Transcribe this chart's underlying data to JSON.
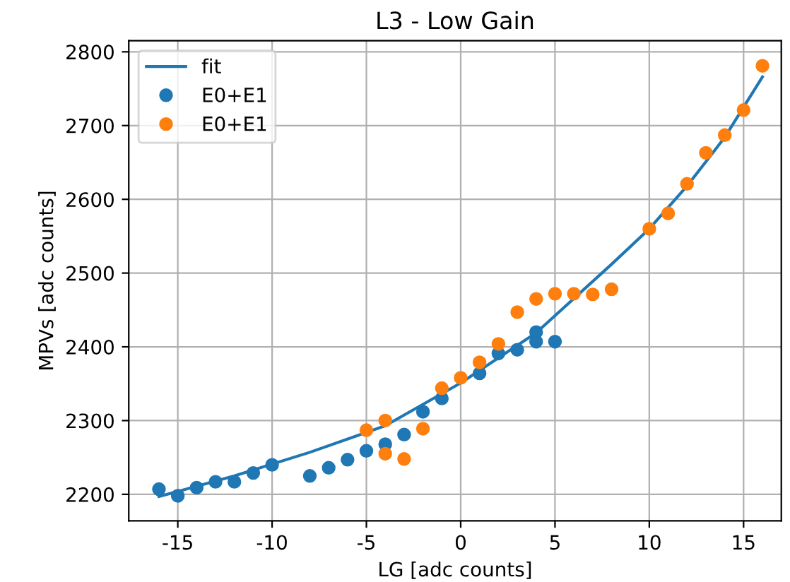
{
  "chart_data": {
    "type": "line",
    "title": "L3 - Low Gain",
    "xlabel": "LG [adc counts]",
    "ylabel": "MPVs [adc counts]",
    "xlim": [
      -17.6,
      17.0
    ],
    "ylim": [
      2164,
      2815
    ],
    "xticks": [
      -15,
      -10,
      -5,
      0,
      5,
      10,
      15
    ],
    "yticks": [
      2200,
      2300,
      2400,
      2500,
      2600,
      2700,
      2800
    ],
    "grid": true,
    "legend": "top left",
    "marker": "circle",
    "series": [
      {
        "name": "fit",
        "marker": "none",
        "color": "#1f77b4",
        "x": [
          -16,
          -12,
          -8,
          -4,
          0,
          4,
          8,
          10,
          12,
          14,
          16
        ],
        "values": [
          2197,
          2225,
          2257,
          2293,
          2351,
          2419,
          2512,
          2560,
          2618,
          2684,
          2766
        ]
      },
      {
        "name": "E0+E1",
        "type": "scatter",
        "color": "#1f77b4",
        "x": [
          -16,
          -15,
          -14,
          -13,
          -12,
          -11,
          -10,
          -8,
          -7,
          -6,
          -5,
          -4,
          -3,
          -2,
          -1,
          1,
          2,
          3,
          4,
          4,
          5
        ],
        "values": [
          2207,
          2198,
          2209,
          2217,
          2217,
          2229,
          2240,
          2225,
          2236,
          2247,
          2259,
          2268,
          2281,
          2312,
          2330,
          2364,
          2391,
          2396,
          2407,
          2420,
          2407
        ]
      },
      {
        "name": "E0+E1",
        "type": "scatter",
        "color": "#ff7f0e",
        "x": [
          -5,
          -4,
          -4,
          -3,
          -2,
          -1,
          0,
          1,
          2,
          3,
          4,
          5,
          6,
          7,
          8,
          10,
          11,
          12,
          13,
          14,
          15,
          16
        ],
        "values": [
          2287,
          2300,
          2255,
          2248,
          2289,
          2344,
          2358,
          2379,
          2404,
          2447,
          2465,
          2472,
          2472,
          2471,
          2478,
          2560,
          2581,
          2621,
          2663,
          2687,
          2721,
          2781
        ]
      }
    ]
  }
}
